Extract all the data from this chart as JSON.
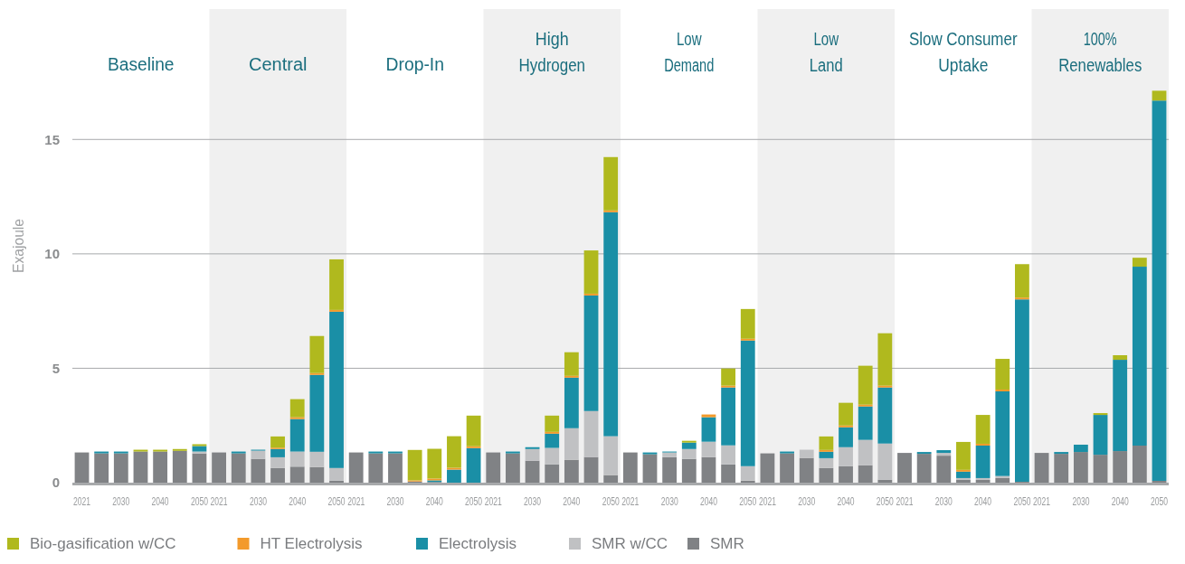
{
  "chart_data": {
    "type": "bar",
    "stacked": true,
    "ylabel": "Exajoule",
    "ylim": [
      0,
      20.7
    ],
    "yticks": [
      0,
      5,
      10,
      15
    ],
    "grid": "y",
    "legend": "bottom",
    "annotations": [
      "Baseline",
      "Central",
      "Drop-In",
      "High\nHydrogen",
      "Low\nDemand",
      "Low\nLand",
      "Slow Consumer\nUptake",
      "100%\nRenewables"
    ],
    "categories": [
      "2021",
      null,
      "2030",
      null,
      "2040",
      null,
      "2050",
      "2021",
      null,
      "2030",
      null,
      "2040",
      null,
      "2050",
      "2021",
      null,
      "2030",
      null,
      "2040",
      null,
      "2050",
      "2021",
      null,
      "2030",
      null,
      "2040",
      null,
      "2050",
      "2021",
      null,
      "2030",
      null,
      "2040",
      null,
      "2050",
      "2021",
      null,
      "2030",
      null,
      "2040",
      null,
      "2050",
      "2021",
      null,
      "2030",
      null,
      "2040",
      null,
      "2050",
      "2021",
      null,
      "2030",
      null,
      "2040",
      null,
      "2050"
    ],
    "series": [
      {
        "name": "SMR",
        "color": "#808285",
        "values": [
          1.32,
          1.28,
          1.28,
          1.36,
          1.36,
          1.39,
          1.28,
          1.32,
          1.28,
          1.04,
          0.64,
          0.7,
          0.68,
          0.09,
          1.32,
          1.28,
          1.28,
          0.05,
          0.03,
          0,
          0,
          1.32,
          1.28,
          0.96,
          0.8,
          1.0,
          1.12,
          0.33,
          1.32,
          1.24,
          1.12,
          1.04,
          1.12,
          0.8,
          0.09,
          1.28,
          1.28,
          1.08,
          0.64,
          0.72,
          0.76,
          0.13,
          1.3,
          1.26,
          1.18,
          0.12,
          0.12,
          0.2,
          0.04,
          1.3,
          1.26,
          1.34,
          1.22,
          1.38,
          1.62,
          0.08
        ]
      },
      {
        "name": "SMR w/CC",
        "color": "#c0c1c3",
        "values": [
          0,
          0,
          0,
          0,
          0,
          0,
          0.08,
          0,
          0,
          0.36,
          0.47,
          0.66,
          0.67,
          0.55,
          0,
          0,
          0,
          0,
          0,
          0,
          0,
          0,
          0,
          0.51,
          0.72,
          1.38,
          2.01,
          1.7,
          0,
          0,
          0.2,
          0.43,
          0.67,
          0.83,
          0.63,
          0,
          0,
          0.36,
          0.43,
          0.83,
          1.11,
          1.58,
          0,
          0,
          0.12,
          0.08,
          0.08,
          0.09,
          0,
          0,
          0,
          0,
          0,
          0,
          0,
          0
        ]
      },
      {
        "name": "Electrolysis",
        "color": "#1a8fa6",
        "values": [
          0,
          0.08,
          0.08,
          0,
          0,
          0,
          0.24,
          0,
          0.08,
          0.04,
          0.36,
          1.42,
          3.36,
          6.83,
          0,
          0.08,
          0.08,
          0,
          0.07,
          0.57,
          1.51,
          0,
          0.08,
          0.08,
          0.62,
          2.21,
          5.05,
          9.79,
          0,
          0.08,
          0.04,
          0.28,
          1.07,
          2.53,
          5.49,
          0,
          0.08,
          0,
          0.28,
          0.87,
          1.46,
          2.45,
          0,
          0.08,
          0.12,
          0.28,
          1.42,
          3.7,
          7.97,
          0,
          0.08,
          0.32,
          1.74,
          3.99,
          7.82,
          16.62
        ]
      },
      {
        "name": "HT Electrolysis",
        "color": "#f39a2b",
        "values": [
          0,
          0,
          0,
          0,
          0,
          0,
          0,
          0,
          0,
          0,
          0.06,
          0.08,
          0.08,
          0.08,
          0,
          0,
          0,
          0.05,
          0.08,
          0.08,
          0.08,
          0,
          0,
          0,
          0.08,
          0.08,
          0.08,
          0.08,
          0,
          0,
          0,
          0,
          0.12,
          0.08,
          0.08,
          0,
          0,
          0,
          0.08,
          0.08,
          0.08,
          0.08,
          0,
          0,
          0,
          0.08,
          0.08,
          0.08,
          0.08,
          0,
          0,
          0,
          0,
          0,
          0,
          0
        ]
      },
      {
        "name": "Bio-gasification w/CC",
        "color": "#b0b91e",
        "values": [
          0,
          0,
          0,
          0.08,
          0.08,
          0.08,
          0.08,
          0,
          0,
          0,
          0.49,
          0.79,
          1.62,
          2.21,
          0,
          0,
          0,
          1.33,
          1.3,
          1.38,
          1.34,
          0,
          0,
          0,
          0.71,
          1.03,
          1.89,
          2.33,
          0,
          0,
          0,
          0.08,
          0,
          0.75,
          1.3,
          0,
          0,
          0,
          0.59,
          0.99,
          1.7,
          2.29,
          0,
          0,
          0,
          1.22,
          1.26,
          1.34,
          1.46,
          0,
          0,
          0,
          0.08,
          0.2,
          0.39,
          0.43
        ]
      }
    ]
  }
}
